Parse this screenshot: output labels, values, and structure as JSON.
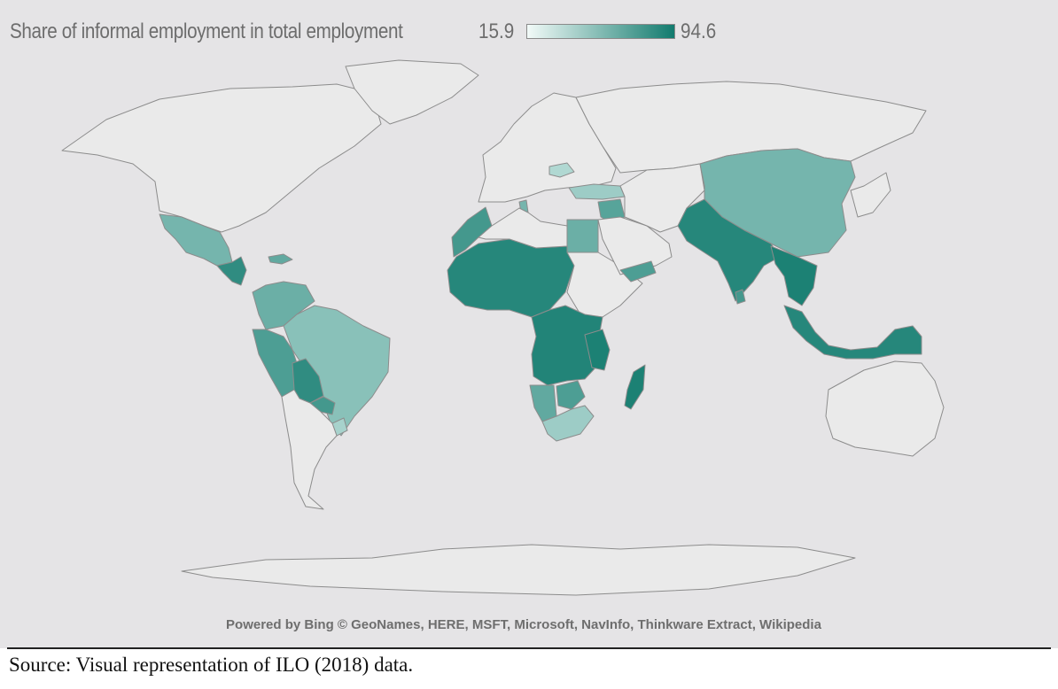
{
  "legend": {
    "title": "Share of informal employment in total employment",
    "min_label": "15.9",
    "max_label": "94.6",
    "min_value": 15.9,
    "max_value": 94.6,
    "color_low": "#f2faf8",
    "color_high": "#127b6e"
  },
  "attribution": "Powered by Bing © GeoNames, HERE, MSFT, Microsoft, NavInfo, Thinkware Extract, Wikipedia",
  "source": "Source: Visual representation of ILO (2018) data.",
  "colors": {
    "background": "#e5e4e6",
    "land_no_data": "#eaeaea",
    "border": "#8c8c8c"
  },
  "regions": [
    {
      "key": "north-america",
      "level": 0
    },
    {
      "key": "greenland",
      "level": 0
    },
    {
      "key": "mexico",
      "level": 0.5
    },
    {
      "key": "central-america",
      "level": 0.85
    },
    {
      "key": "caribbean",
      "level": 0.6
    },
    {
      "key": "colombia-venezuela",
      "level": 0.55
    },
    {
      "key": "ecuador-peru",
      "level": 0.7
    },
    {
      "key": "bolivia",
      "level": 0.85
    },
    {
      "key": "brazil",
      "level": 0.4
    },
    {
      "key": "paraguay",
      "level": 0.75
    },
    {
      "key": "uruguay",
      "level": 0.25
    },
    {
      "key": "southern-cone",
      "level": 0
    },
    {
      "key": "europe",
      "level": 0
    },
    {
      "key": "romania",
      "level": 0.2
    },
    {
      "key": "turkey",
      "level": 0.3
    },
    {
      "key": "russia",
      "level": 0
    },
    {
      "key": "morocco",
      "level": 0.75
    },
    {
      "key": "tunisia",
      "level": 0.5
    },
    {
      "key": "egypt",
      "level": 0.55
    },
    {
      "key": "levant",
      "level": 0.65
    },
    {
      "key": "sahel-west-africa",
      "level": 0.9
    },
    {
      "key": "yemen",
      "level": 0.7
    },
    {
      "key": "central-africa",
      "level": 0.92
    },
    {
      "key": "tanzania",
      "level": 0.95
    },
    {
      "key": "namibia",
      "level": 0.6
    },
    {
      "key": "zimbabwe",
      "level": 0.7
    },
    {
      "key": "south-africa",
      "level": 0.3
    },
    {
      "key": "madagascar",
      "level": 0.95
    },
    {
      "key": "china",
      "level": 0.5
    },
    {
      "key": "pakistan-india",
      "level": 0.9
    },
    {
      "key": "sri-lanka",
      "level": 0.75
    },
    {
      "key": "southeast-asia",
      "level": 0.95
    },
    {
      "key": "indonesia",
      "level": 0.9
    },
    {
      "key": "australia",
      "level": 0
    },
    {
      "key": "antarctica",
      "level": 0
    }
  ]
}
